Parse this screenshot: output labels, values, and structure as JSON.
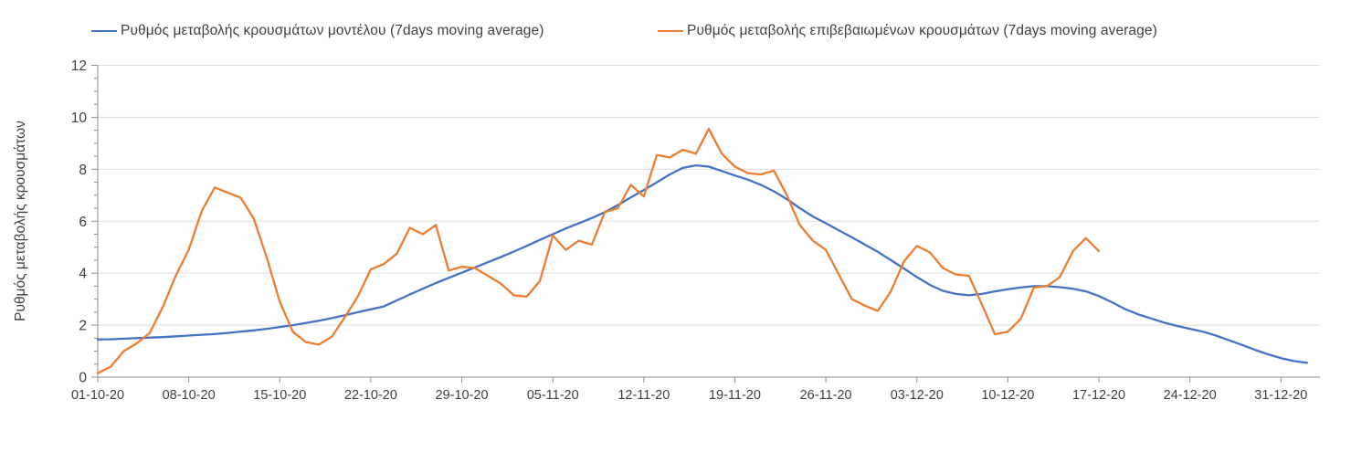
{
  "legend": [
    {
      "label": "Ρυθμός μεταβολής κρουσμάτων μοντέλου (7days moving average)",
      "color": "#4472C4"
    },
    {
      "label": "Ρυθμός μεταβολής επιβεβαιωμένων κρουσμάτων (7days moving average)",
      "color": "#ED7D31"
    }
  ],
  "chart_data": {
    "type": "line",
    "title": "",
    "xlabel": "",
    "ylabel": "Ρυθμός μεταβολής κρουσμάτων",
    "ylim": [
      0,
      12
    ],
    "y_major_ticks": [
      0,
      2,
      4,
      6,
      8,
      10,
      12
    ],
    "y_minor_step": 0.5,
    "grid": "horizontal-major",
    "legend_position": "top",
    "x_unit": "days since 01-10-20, daily points",
    "x_range_days": [
      0,
      94
    ],
    "x_tick_days": [
      0,
      7,
      14,
      21,
      28,
      35,
      42,
      49,
      56,
      63,
      70,
      77,
      84,
      91
    ],
    "x_tick_labels": [
      "01-10-20",
      "08-10-20",
      "15-10-20",
      "22-10-20",
      "29-10-20",
      "05-11-20",
      "12-11-20",
      "19-11-20",
      "26-11-20",
      "03-12-20",
      "10-12-20",
      "17-12-20",
      "24-12-20",
      "31-12-20"
    ],
    "series": [
      {
        "name": "Ρυθμός μεταβολής κρουσμάτων μοντέλου (7days moving average)",
        "color": "#4472C4",
        "start_day": 0,
        "values": [
          1.45,
          1.46,
          1.48,
          1.5,
          1.52,
          1.54,
          1.57,
          1.6,
          1.63,
          1.66,
          1.7,
          1.75,
          1.8,
          1.86,
          1.93,
          2.0,
          2.08,
          2.17,
          2.27,
          2.38,
          2.5,
          2.61,
          2.72,
          2.95,
          3.18,
          3.4,
          3.62,
          3.82,
          4.02,
          4.22,
          4.42,
          4.62,
          4.83,
          5.05,
          5.28,
          5.5,
          5.72,
          5.92,
          6.12,
          6.35,
          6.62,
          6.92,
          7.2,
          7.5,
          7.8,
          8.05,
          8.15,
          8.1,
          7.93,
          7.76,
          7.6,
          7.4,
          7.15,
          6.85,
          6.5,
          6.18,
          5.92,
          5.65,
          5.38,
          5.1,
          4.82,
          4.5,
          4.18,
          3.85,
          3.55,
          3.32,
          3.2,
          3.15,
          3.2,
          3.3,
          3.38,
          3.45,
          3.5,
          3.5,
          3.46,
          3.4,
          3.3,
          3.12,
          2.88,
          2.62,
          2.42,
          2.26,
          2.1,
          1.97,
          1.86,
          1.75,
          1.6,
          1.42,
          1.24,
          1.05,
          0.88,
          0.73,
          0.62,
          0.55
        ]
      },
      {
        "name": "Ρυθμός μεταβολής επιβεβαιωμένων κρουσμάτων (7days moving average)",
        "color": "#ED7D31",
        "start_day": 0,
        "values": [
          0.15,
          0.4,
          1.0,
          1.3,
          1.7,
          2.7,
          3.9,
          4.9,
          6.4,
          7.3,
          7.1,
          6.9,
          6.1,
          4.6,
          2.9,
          1.75,
          1.35,
          1.25,
          1.55,
          2.3,
          3.1,
          4.15,
          4.35,
          4.75,
          5.75,
          5.5,
          5.85,
          4.1,
          4.25,
          4.2,
          3.9,
          3.6,
          3.15,
          3.1,
          3.7,
          5.45,
          4.9,
          5.25,
          5.1,
          6.35,
          6.5,
          7.4,
          6.95,
          8.55,
          8.45,
          8.75,
          8.6,
          9.55,
          8.6,
          8.1,
          7.85,
          7.8,
          7.95,
          7.0,
          5.85,
          5.25,
          4.9,
          3.95,
          3.0,
          2.75,
          2.55,
          3.3,
          4.45,
          5.05,
          4.8,
          4.2,
          3.95,
          3.9,
          2.8,
          1.65,
          1.75,
          2.25,
          3.45,
          3.5,
          3.85,
          4.85,
          5.35,
          4.85
        ]
      }
    ],
    "colors": {
      "model_line": "#4472C4",
      "confirmed_line": "#ED7D31",
      "gridline": "#DCDCDC",
      "axis": "#8E8E8E",
      "text": "#3f3f3f",
      "background": "#FFFFFF"
    }
  }
}
